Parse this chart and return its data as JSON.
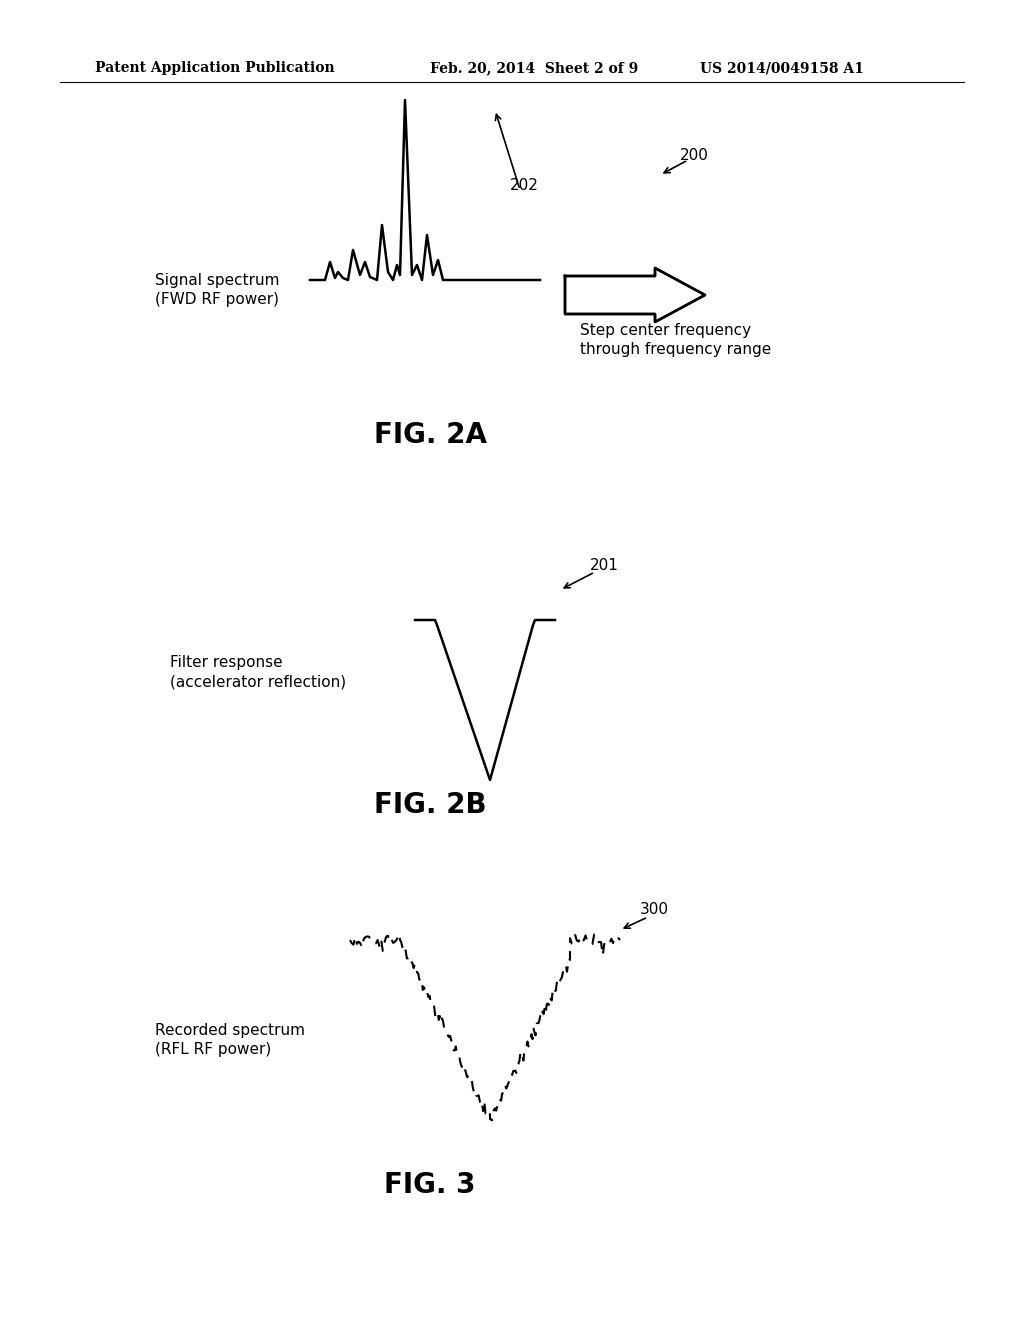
{
  "bg_color": "#ffffff",
  "header_left": "Patent Application Publication",
  "header_mid": "Feb. 20, 2014  Sheet 2 of 9",
  "header_right": "US 2014/0049158 A1",
  "fig2a_label": "FIG. 2A",
  "fig2b_label": "FIG. 2B",
  "fig3_label": "FIG. 3",
  "label_202": "202",
  "label_200": "200",
  "label_201": "201",
  "label_300": "300",
  "text_signal": "Signal spectrum\n(FWD RF power)",
  "text_step": "Step center frequency\nthrough frequency range",
  "text_filter": "Filter response\n(accelerator reflection)",
  "text_recorded": "Recorded spectrum\n(RFL RF power)"
}
